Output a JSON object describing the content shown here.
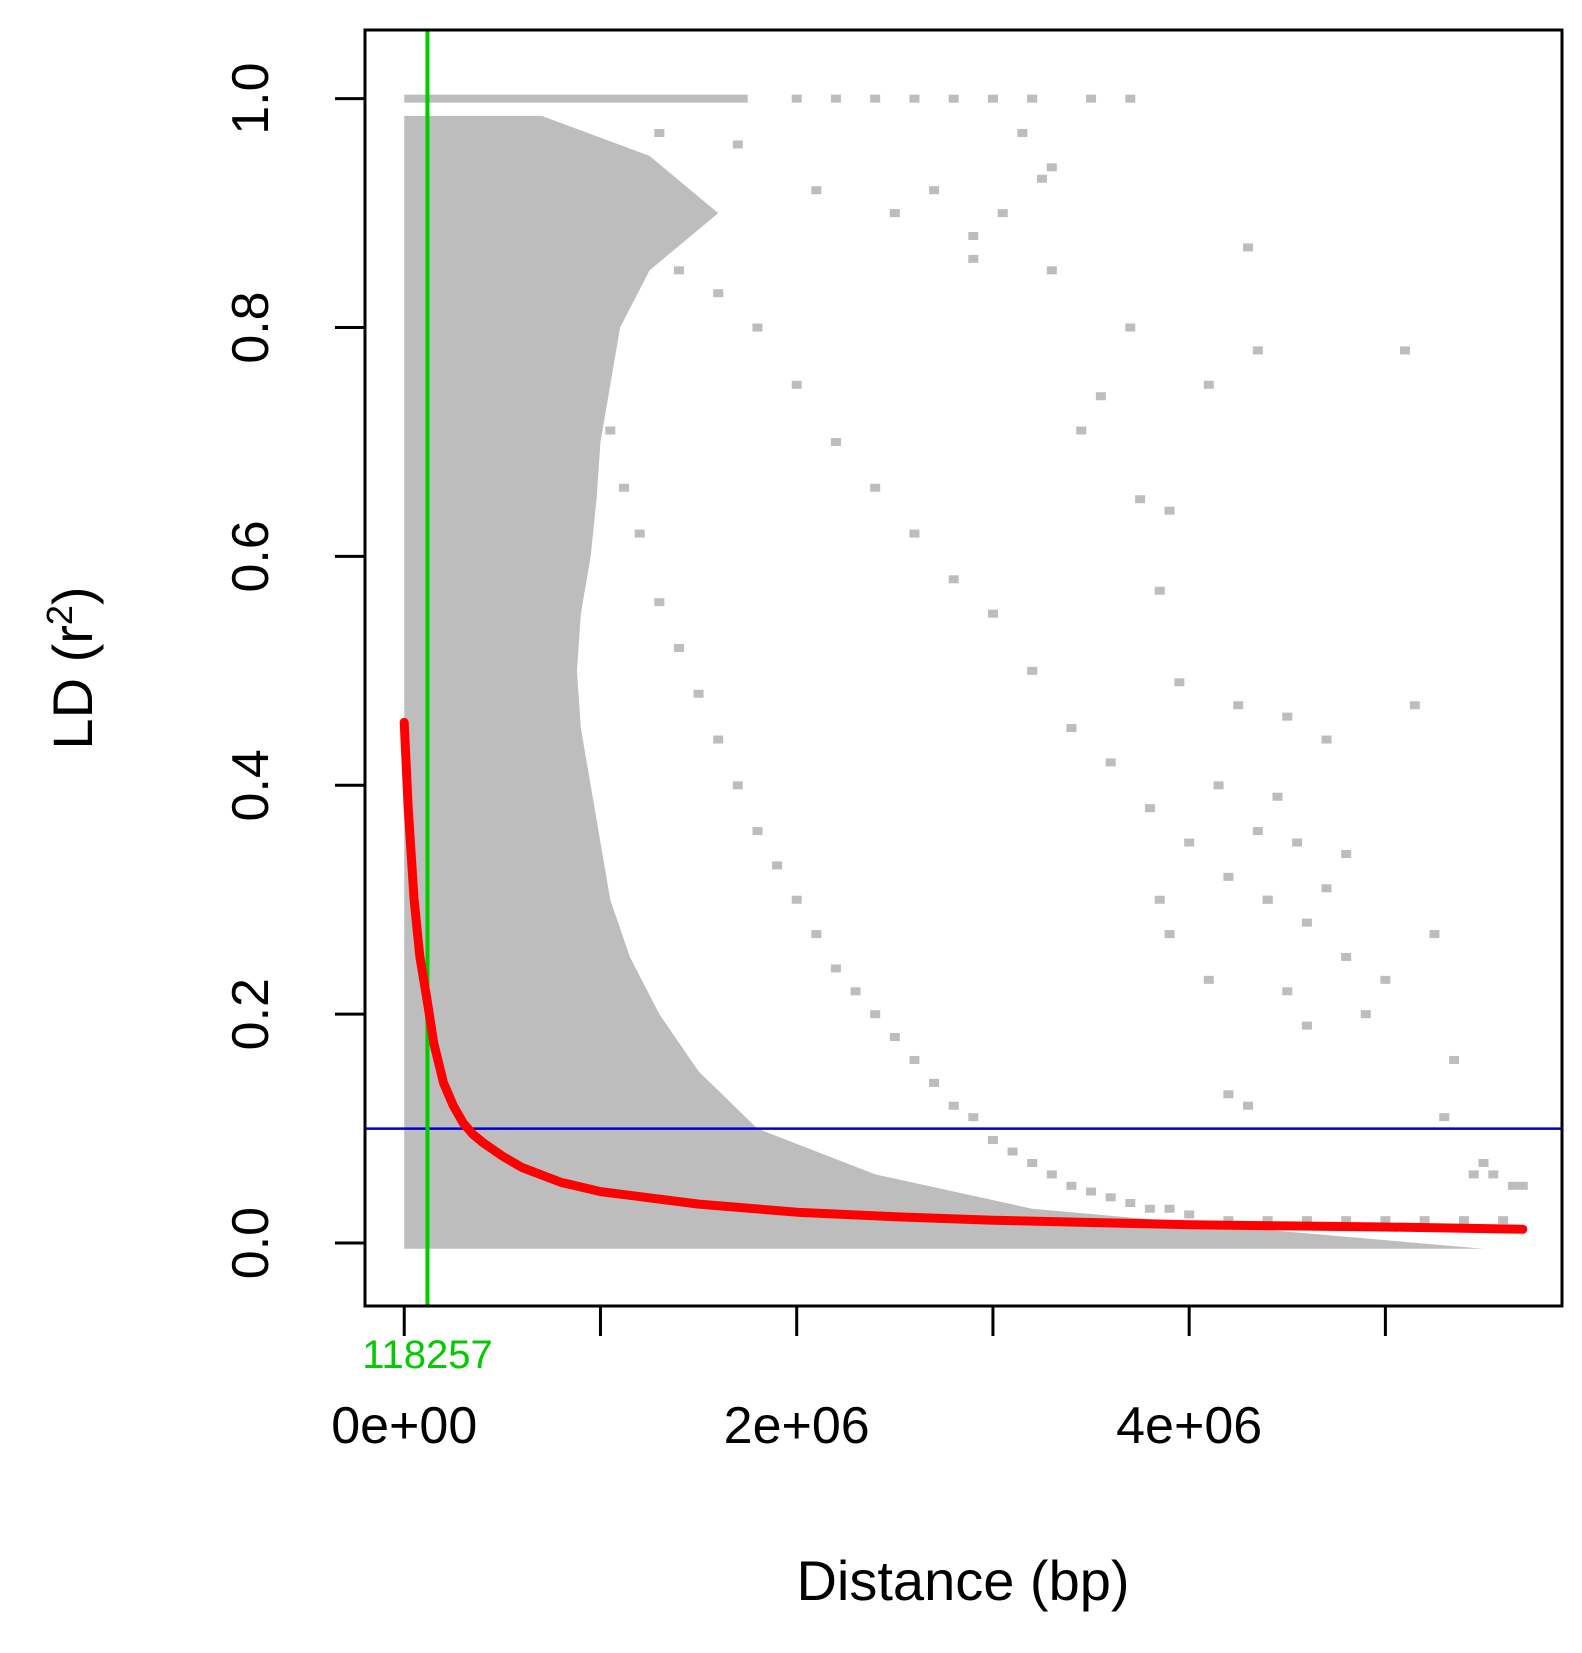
{
  "chart_data": {
    "type": "scatter",
    "title": "",
    "xlabel": "Distance (bp)",
    "ylabel": "LD (r2)",
    "ylabel_parts": {
      "main": "LD (r",
      "sup": "2",
      "close": ")"
    },
    "xlim": [
      -200000,
      5900000
    ],
    "ylim": [
      -0.055,
      1.06
    ],
    "x_ticks": [
      {
        "value": 0,
        "label": "0e+00"
      },
      {
        "value": 1000000,
        "label": ""
      },
      {
        "value": 2000000,
        "label": "2e+06"
      },
      {
        "value": 3000000,
        "label": ""
      },
      {
        "value": 4000000,
        "label": "4e+06"
      },
      {
        "value": 5000000,
        "label": ""
      }
    ],
    "y_ticks": [
      {
        "value": 0.0,
        "label": "0.0"
      },
      {
        "value": 0.2,
        "label": "0.2"
      },
      {
        "value": 0.4,
        "label": "0.4"
      },
      {
        "value": 0.6,
        "label": "0.6"
      },
      {
        "value": 0.8,
        "label": "0.8"
      },
      {
        "value": 1.0,
        "label": "1.0"
      }
    ],
    "threshold_line": {
      "y": 0.1,
      "color": "#0000cc"
    },
    "decay_distance": {
      "x": 118257,
      "label": "118257",
      "color": "#00cc00"
    },
    "decay_curve": {
      "color": "#ff0000",
      "points": [
        [
          0,
          0.455
        ],
        [
          20000,
          0.38
        ],
        [
          50000,
          0.3
        ],
        [
          80000,
          0.25
        ],
        [
          118257,
          0.21
        ],
        [
          150000,
          0.175
        ],
        [
          200000,
          0.14
        ],
        [
          250000,
          0.12
        ],
        [
          300000,
          0.105
        ],
        [
          350000,
          0.095
        ],
        [
          400000,
          0.088
        ],
        [
          500000,
          0.076
        ],
        [
          600000,
          0.066
        ],
        [
          800000,
          0.053
        ],
        [
          1000000,
          0.045
        ],
        [
          1500000,
          0.034
        ],
        [
          2000000,
          0.027
        ],
        [
          2500000,
          0.023
        ],
        [
          3000000,
          0.02
        ],
        [
          3500000,
          0.018
        ],
        [
          4000000,
          0.016
        ],
        [
          4500000,
          0.015
        ],
        [
          5000000,
          0.014
        ],
        [
          5400000,
          0.013
        ],
        [
          5700000,
          0.012
        ]
      ]
    },
    "scatter_color": "#bdbdbd",
    "scatter_series": {
      "name": "",
      "dense_region": {
        "x_range": [
          0,
          700000
        ],
        "y_range": [
          -0.005,
          0.985
        ]
      },
      "points": [
        [
          750000,
          0.95
        ],
        [
          820000,
          0.88
        ],
        [
          900000,
          0.83
        ],
        [
          980000,
          0.78
        ],
        [
          1050000,
          0.71
        ],
        [
          1120000,
          0.66
        ],
        [
          1200000,
          0.62
        ],
        [
          1300000,
          0.56
        ],
        [
          1400000,
          0.52
        ],
        [
          1500000,
          0.48
        ],
        [
          1600000,
          0.44
        ],
        [
          1700000,
          0.4
        ],
        [
          1800000,
          0.36
        ],
        [
          1900000,
          0.33
        ],
        [
          2000000,
          0.3
        ],
        [
          2100000,
          0.27
        ],
        [
          2200000,
          0.24
        ],
        [
          2300000,
          0.22
        ],
        [
          2400000,
          0.2
        ],
        [
          2500000,
          0.18
        ],
        [
          2600000,
          0.16
        ],
        [
          2700000,
          0.14
        ],
        [
          2800000,
          0.12
        ],
        [
          2900000,
          0.11
        ],
        [
          3000000,
          0.09
        ],
        [
          3100000,
          0.08
        ],
        [
          3200000,
          0.07
        ],
        [
          3300000,
          0.06
        ],
        [
          3400000,
          0.05
        ],
        [
          3500000,
          0.045
        ],
        [
          3600000,
          0.04
        ],
        [
          3700000,
          0.035
        ],
        [
          3800000,
          0.03
        ],
        [
          3900000,
          0.03
        ],
        [
          4000000,
          0.025
        ],
        [
          4200000,
          0.02
        ],
        [
          4400000,
          0.02
        ],
        [
          4600000,
          0.02
        ],
        [
          4800000,
          0.02
        ],
        [
          5000000,
          0.02
        ],
        [
          5200000,
          0.02
        ],
        [
          5400000,
          0.02
        ],
        [
          5600000,
          0.02
        ],
        [
          1000000,
          0.93
        ],
        [
          1200000,
          0.9
        ],
        [
          1400000,
          0.85
        ],
        [
          1600000,
          0.83
        ],
        [
          1800000,
          0.8
        ],
        [
          2000000,
          0.75
        ],
        [
          2200000,
          0.7
        ],
        [
          2400000,
          0.66
        ],
        [
          2600000,
          0.62
        ],
        [
          2800000,
          0.58
        ],
        [
          3000000,
          0.55
        ],
        [
          3200000,
          0.5
        ],
        [
          3400000,
          0.45
        ],
        [
          3600000,
          0.42
        ],
        [
          3800000,
          0.38
        ],
        [
          4000000,
          0.35
        ],
        [
          4200000,
          0.32
        ],
        [
          4400000,
          0.3
        ],
        [
          4600000,
          0.28
        ],
        [
          4800000,
          0.25
        ],
        [
          1300000,
          0.97
        ],
        [
          1700000,
          0.96
        ],
        [
          2100000,
          0.92
        ],
        [
          2500000,
          0.9
        ],
        [
          2900000,
          0.88
        ],
        [
          3300000,
          0.85
        ],
        [
          3700000,
          0.8
        ],
        [
          4100000,
          0.75
        ],
        [
          4300000,
          0.87
        ],
        [
          4350000,
          0.78
        ],
        [
          5100000,
          0.78
        ],
        [
          5150000,
          0.47
        ],
        [
          4500000,
          0.46
        ],
        [
          4250000,
          0.47
        ],
        [
          4700000,
          0.44
        ],
        [
          3900000,
          0.64
        ],
        [
          3850000,
          0.57
        ],
        [
          3750000,
          0.65
        ],
        [
          3550000,
          0.74
        ],
        [
          3450000,
          0.71
        ],
        [
          3950000,
          0.49
        ],
        [
          4150000,
          0.4
        ],
        [
          4350000,
          0.36
        ],
        [
          4450000,
          0.39
        ],
        [
          4550000,
          0.35
        ],
        [
          3850000,
          0.3
        ],
        [
          3900000,
          0.27
        ],
        [
          4100000,
          0.23
        ],
        [
          4500000,
          0.22
        ],
        [
          4900000,
          0.2
        ],
        [
          5000000,
          0.23
        ],
        [
          5250000,
          0.27
        ],
        [
          5300000,
          0.11
        ],
        [
          5350000,
          0.16
        ],
        [
          4400000,
          0.3
        ],
        [
          4800000,
          0.34
        ],
        [
          4700000,
          0.31
        ],
        [
          4600000,
          0.19
        ],
        [
          4200000,
          0.13
        ],
        [
          4300000,
          0.12
        ],
        [
          5450000,
          0.06
        ],
        [
          5500000,
          0.07
        ],
        [
          5550000,
          0.06
        ],
        [
          5650000,
          0.05
        ],
        [
          5700000,
          0.05
        ],
        [
          2000000,
          1.0
        ],
        [
          2200000,
          1.0
        ],
        [
          2400000,
          1.0
        ],
        [
          2600000,
          1.0
        ],
        [
          2800000,
          1.0
        ],
        [
          3000000,
          1.0
        ],
        [
          3200000,
          1.0
        ],
        [
          3500000,
          1.0
        ],
        [
          3700000,
          1.0
        ],
        [
          3300000,
          0.94
        ],
        [
          3150000,
          0.97
        ],
        [
          3250000,
          0.93
        ],
        [
          2900000,
          0.86
        ],
        [
          3050000,
          0.9
        ],
        [
          2700000,
          0.92
        ]
      ]
    },
    "dense_band_x_right": [
      [
        0.985,
        700000
      ],
      [
        0.95,
        1250000
      ],
      [
        0.9,
        1600000
      ],
      [
        0.85,
        1250000
      ],
      [
        0.8,
        1100000
      ],
      [
        0.75,
        1050000
      ],
      [
        0.7,
        1000000
      ],
      [
        0.65,
        980000
      ],
      [
        0.6,
        950000
      ],
      [
        0.55,
        900000
      ],
      [
        0.5,
        880000
      ],
      [
        0.45,
        900000
      ],
      [
        0.4,
        950000
      ],
      [
        0.35,
        1000000
      ],
      [
        0.3,
        1050000
      ],
      [
        0.25,
        1150000
      ],
      [
        0.2,
        1300000
      ],
      [
        0.15,
        1500000
      ],
      [
        0.1,
        1800000
      ],
      [
        0.06,
        2400000
      ],
      [
        0.03,
        3200000
      ],
      [
        0.01,
        4500000
      ],
      [
        -0.005,
        5500000
      ]
    ]
  }
}
